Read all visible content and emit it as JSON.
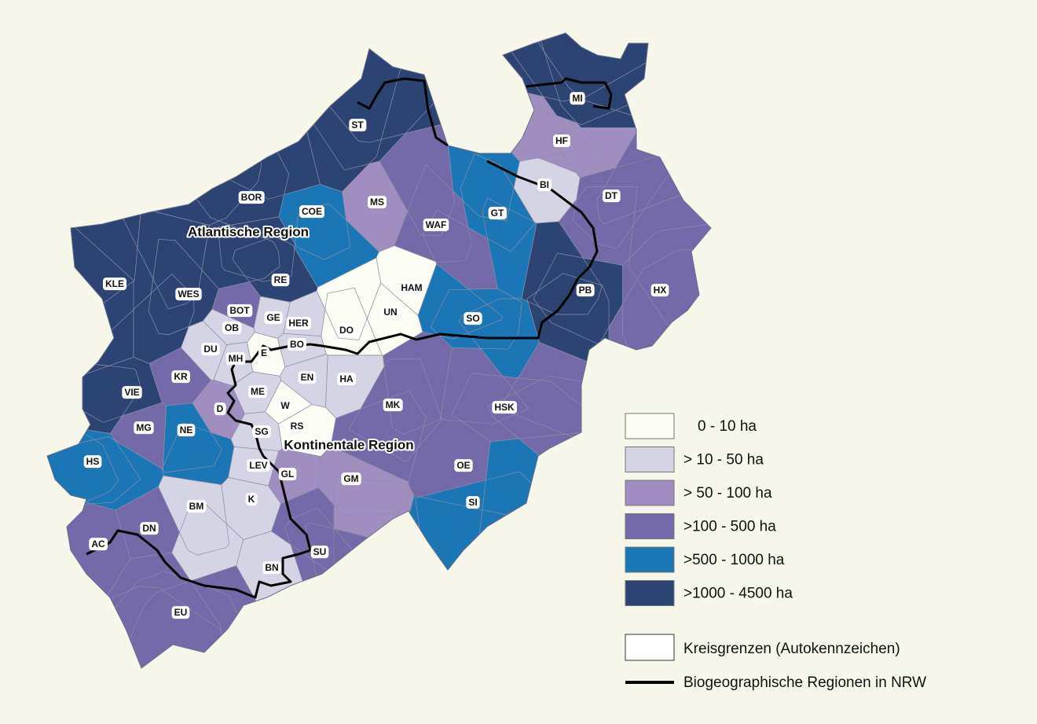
{
  "map": {
    "districts": [
      {
        "label": "ST",
        "color": "#2b4473"
      },
      {
        "label": "BOR",
        "color": "#2b4473"
      },
      {
        "label": "COE",
        "color": "#1a76b4"
      },
      {
        "label": "MS",
        "color": "#a08ec0"
      },
      {
        "label": "WAF",
        "color": "#756aa9"
      },
      {
        "label": "GT",
        "color": "#1a76b4"
      },
      {
        "label": "BI",
        "color": "#d4d4e4"
      },
      {
        "label": "HF",
        "color": "#a08ec0"
      },
      {
        "label": "MI",
        "color": "#2b4473"
      },
      {
        "label": "DT",
        "color": "#756aa9"
      },
      {
        "label": "HX",
        "color": "#756aa9"
      },
      {
        "label": "PB",
        "color": "#2b4473"
      },
      {
        "label": "SO",
        "color": "#1a76b4"
      },
      {
        "label": "HAM",
        "color": "#fbfcf4"
      },
      {
        "label": "UN",
        "color": "#fbfcf4"
      },
      {
        "label": "DO",
        "color": "#fbfcf4"
      },
      {
        "label": "HER",
        "color": "#d4d4e4"
      },
      {
        "label": "GE",
        "color": "#d4d4e4"
      },
      {
        "label": "BOT",
        "color": "#756aa9"
      },
      {
        "label": "OB",
        "color": "#d4d4e4"
      },
      {
        "label": "BO",
        "color": "#d4d4e4"
      },
      {
        "label": "E",
        "color": "#fbfcf4"
      },
      {
        "label": "MH",
        "color": "#d4d4e4"
      },
      {
        "label": "DU",
        "color": "#d4d4e4"
      },
      {
        "label": "KLE",
        "color": "#2b4473"
      },
      {
        "label": "WES",
        "color": "#2b4473"
      },
      {
        "label": "RE",
        "color": "#2b4473"
      },
      {
        "label": "KR",
        "color": "#756aa9"
      },
      {
        "label": "VIE",
        "color": "#2b4473"
      },
      {
        "label": "D",
        "color": "#a08ec0"
      },
      {
        "label": "ME",
        "color": "#d4d4e4"
      },
      {
        "label": "EN",
        "color": "#d4d4e4"
      },
      {
        "label": "HA",
        "color": "#d4d4e4"
      },
      {
        "label": "W",
        "color": "#fbfcf4"
      },
      {
        "label": "RS",
        "color": "#fbfcf4"
      },
      {
        "label": "SG",
        "color": "#d4d4e4"
      },
      {
        "label": "MG",
        "color": "#756aa9"
      },
      {
        "label": "NE",
        "color": "#1a76b4"
      },
      {
        "label": "HS",
        "color": "#1a76b4"
      },
      {
        "label": "MK",
        "color": "#756aa9"
      },
      {
        "label": "HSK",
        "color": "#756aa9"
      },
      {
        "label": "OE",
        "color": "#756aa9"
      },
      {
        "label": "SI",
        "color": "#1a76b4"
      },
      {
        "label": "LEV",
        "color": "#d4d4e4"
      },
      {
        "label": "GL",
        "color": "#a08ec0"
      },
      {
        "label": "GM",
        "color": "#a08ec0"
      },
      {
        "label": "K",
        "color": "#d4d4e4"
      },
      {
        "label": "BM",
        "color": "#d4d4e4"
      },
      {
        "label": "DN",
        "color": "#756aa9"
      },
      {
        "label": "AC",
        "color": "#756aa9"
      },
      {
        "label": "SU",
        "color": "#756aa9"
      },
      {
        "label": "BN",
        "color": "#d4d4e4"
      },
      {
        "label": "EU",
        "color": "#756aa9"
      }
    ],
    "regions": [
      "Atlantische Region",
      "Kontinentale Region"
    ],
    "legend": [
      {
        "label": "0 - 10 ha",
        "color": "#fbfcf4"
      },
      {
        "label": "> 10 - 50 ha",
        "color": "#d4d4e4"
      },
      {
        "label": "> 50 - 100 ha",
        "color": "#a08ec0"
      },
      {
        "label": ">100 - 500 ha",
        "color": "#756aa9"
      },
      {
        "label": ">500 - 1000 ha",
        "color": "#1a76b4"
      },
      {
        "label": ">1000 - 4500 ha",
        "color": "#2b4473"
      }
    ],
    "border_legend": "Kreisgrenzen (Autokennzeichen)",
    "region_legend": "Biogeographische Regionen in NRW"
  }
}
